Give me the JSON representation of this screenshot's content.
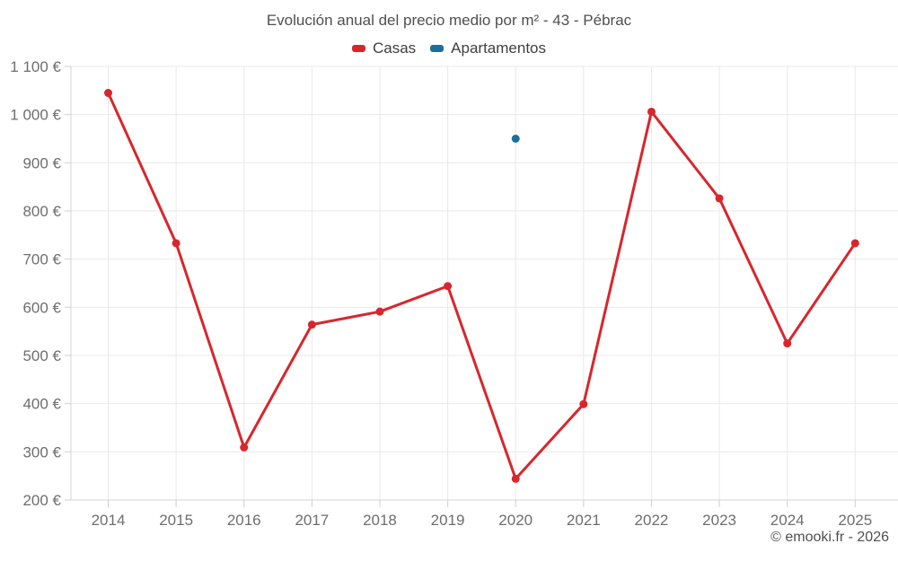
{
  "footer": {
    "attribution": "© emooki.fr - 2026"
  },
  "chart_data": {
    "type": "line",
    "title": "Evolución anual del precio medio por m² - 43 - Pébrac",
    "categories": [
      "2014",
      "2015",
      "2016",
      "2017",
      "2018",
      "2019",
      "2020",
      "2021",
      "2022",
      "2023",
      "2024",
      "2025"
    ],
    "series": [
      {
        "name": "Casas",
        "color": "#d8262c",
        "values": [
          1045,
          733,
          309,
          564,
          591,
          644,
          244,
          399,
          1006,
          826,
          525,
          733
        ]
      },
      {
        "name": "Apartamentos",
        "color": "#1a6f9e",
        "values": [
          null,
          null,
          null,
          null,
          null,
          null,
          950,
          null,
          null,
          null,
          null,
          null
        ]
      }
    ],
    "y_axis": {
      "min": 200,
      "max": 1100,
      "step": 100,
      "unit": "€",
      "tick_labels": [
        "200 €",
        "300 €",
        "400 €",
        "500 €",
        "600 €",
        "700 €",
        "800 €",
        "900 €",
        "1 000 €",
        "1 100 €"
      ]
    },
    "legend_position": "top",
    "grid": true,
    "style": {
      "grid_color": "#e9e9e9",
      "axis_color": "#d4d4d4",
      "tick_color": "#cfcfcf",
      "label_color": "#6e6e6e"
    }
  }
}
